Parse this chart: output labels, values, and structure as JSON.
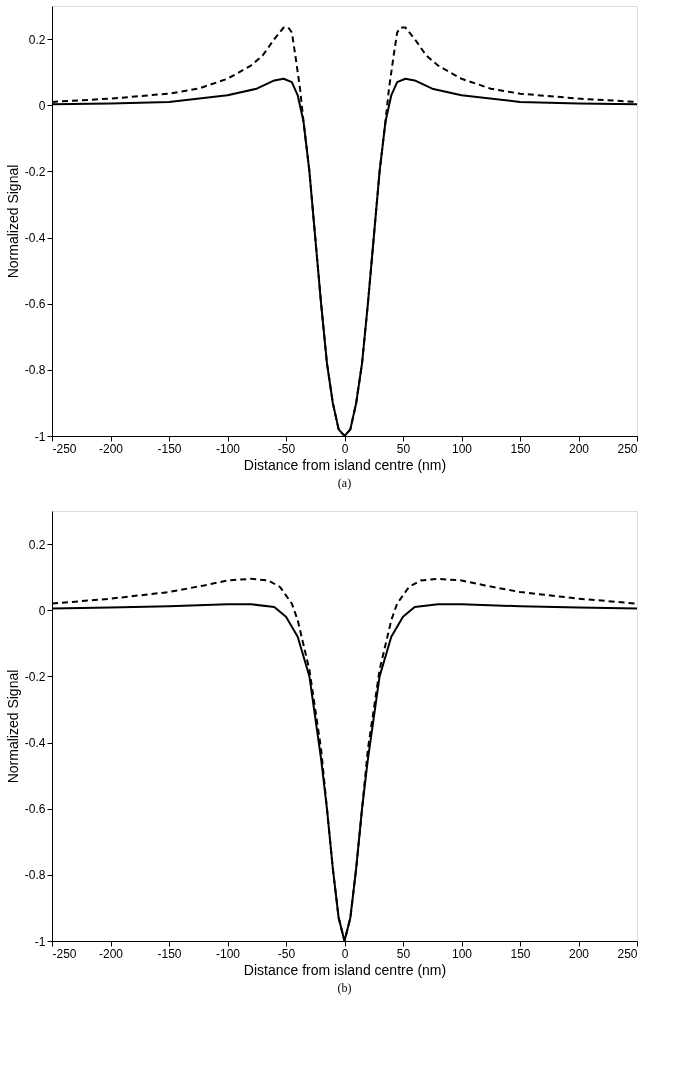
{
  "chart_data": [
    {
      "type": "line",
      "xlabel": "Distance from island centre (nm)",
      "ylabel": "Normalized Signal",
      "annotations": [
        "(a)"
      ],
      "xlim": [
        -250,
        250
      ],
      "xticks": [
        -250,
        -200,
        -150,
        -100,
        -50,
        0,
        50,
        100,
        150,
        200,
        250
      ],
      "ylim": [
        -1,
        0.3
      ],
      "yticks": [
        -1,
        -0.8,
        -0.6,
        -0.4,
        -0.2,
        0,
        0.2
      ],
      "grid": false,
      "series": [
        {
          "color": "#000000",
          "line_style": "solid",
          "x": [
            -250,
            -200,
            -150,
            -100,
            -75,
            -60,
            -52,
            -45,
            -40,
            -35,
            -30,
            -25,
            -20,
            -15,
            -10,
            -5,
            0,
            5,
            10,
            15,
            20,
            25,
            30,
            35,
            40,
            45,
            52,
            60,
            75,
            100,
            150,
            200,
            250
          ],
          "values": [
            0.003,
            0.005,
            0.01,
            0.03,
            0.05,
            0.075,
            0.08,
            0.07,
            0.03,
            -0.05,
            -0.2,
            -0.4,
            -0.6,
            -0.78,
            -0.9,
            -0.98,
            -1,
            -0.98,
            -0.9,
            -0.78,
            -0.6,
            -0.4,
            -0.2,
            -0.05,
            0.03,
            0.07,
            0.08,
            0.075,
            0.05,
            0.03,
            0.01,
            0.005,
            0.003
          ]
        },
        {
          "color": "#000000",
          "line_style": "dashed",
          "x": [
            -250,
            -200,
            -150,
            -125,
            -100,
            -80,
            -70,
            -60,
            -52,
            -48,
            -45,
            -42,
            -38,
            -35,
            -30,
            -25,
            -20,
            -15,
            -10,
            -5,
            0,
            5,
            10,
            15,
            20,
            25,
            30,
            35,
            38,
            42,
            45,
            48,
            52,
            60,
            70,
            80,
            100,
            125,
            150,
            200,
            250
          ],
          "values": [
            0.01,
            0.02,
            0.035,
            0.05,
            0.08,
            0.12,
            0.15,
            0.2,
            0.235,
            0.235,
            0.22,
            0.15,
            0.05,
            -0.05,
            -0.2,
            -0.4,
            -0.6,
            -0.78,
            -0.9,
            -0.98,
            -1,
            -0.98,
            -0.9,
            -0.78,
            -0.6,
            -0.4,
            -0.2,
            -0.05,
            0.05,
            0.15,
            0.22,
            0.235,
            0.235,
            0.2,
            0.15,
            0.12,
            0.08,
            0.05,
            0.035,
            0.02,
            0.01
          ]
        }
      ]
    },
    {
      "type": "line",
      "xlabel": "Distance from island centre (nm)",
      "ylabel": "Normalized Signal",
      "annotations": [
        "(b)"
      ],
      "xlim": [
        -250,
        250
      ],
      "xticks": [
        -250,
        -200,
        -150,
        -100,
        -50,
        0,
        50,
        100,
        150,
        200,
        250
      ],
      "ylim": [
        -1,
        0.3
      ],
      "yticks": [
        -1,
        -0.8,
        -0.6,
        -0.4,
        -0.2,
        0,
        0.2
      ],
      "grid": false,
      "series": [
        {
          "color": "#000000",
          "line_style": "solid",
          "x": [
            -250,
            -200,
            -150,
            -100,
            -80,
            -60,
            -50,
            -40,
            -30,
            -20,
            -15,
            -10,
            -5,
            0,
            5,
            10,
            15,
            20,
            30,
            40,
            50,
            60,
            80,
            100,
            150,
            200,
            250
          ],
          "values": [
            0.005,
            0.008,
            0.012,
            0.018,
            0.018,
            0.01,
            -0.02,
            -0.08,
            -0.2,
            -0.45,
            -0.6,
            -0.78,
            -0.93,
            -1,
            -0.93,
            -0.78,
            -0.6,
            -0.45,
            -0.2,
            -0.08,
            -0.02,
            0.01,
            0.018,
            0.018,
            0.012,
            0.008,
            0.005
          ]
        },
        {
          "color": "#000000",
          "line_style": "dashed",
          "x": [
            -250,
            -200,
            -150,
            -120,
            -100,
            -80,
            -65,
            -55,
            -45,
            -40,
            -30,
            -20,
            -15,
            -10,
            -5,
            0,
            5,
            10,
            15,
            20,
            30,
            40,
            45,
            55,
            65,
            80,
            100,
            120,
            150,
            200,
            250
          ],
          "values": [
            0.02,
            0.035,
            0.055,
            0.075,
            0.09,
            0.095,
            0.09,
            0.07,
            0.02,
            -0.03,
            -0.18,
            -0.42,
            -0.6,
            -0.78,
            -0.93,
            -1,
            -0.93,
            -0.78,
            -0.6,
            -0.42,
            -0.18,
            -0.03,
            0.02,
            0.07,
            0.09,
            0.095,
            0.09,
            0.075,
            0.055,
            0.035,
            0.02
          ]
        }
      ]
    }
  ]
}
